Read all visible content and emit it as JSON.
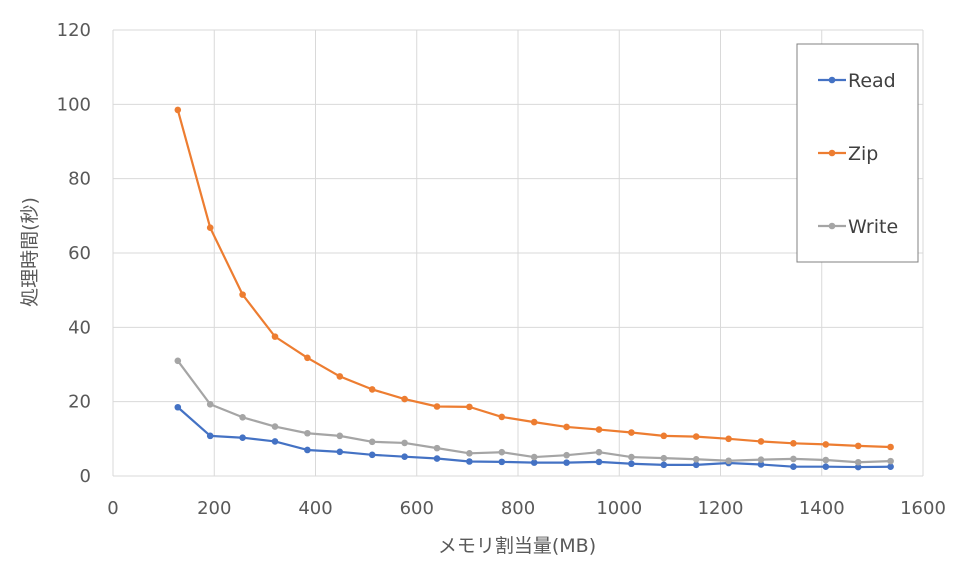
{
  "chart_data": {
    "type": "line",
    "title": "",
    "xlabel": "メモリ割当量(MB)",
    "ylabel": "処理時間(秒)",
    "xlim": [
      0,
      1600
    ],
    "ylim": [
      0,
      120
    ],
    "xticks": [
      0,
      200,
      400,
      600,
      800,
      1000,
      1200,
      1400,
      1600
    ],
    "yticks": [
      0,
      20,
      40,
      60,
      80,
      100,
      120
    ],
    "grid": true,
    "legend_position": "right",
    "x": [
      128,
      192,
      256,
      320,
      384,
      448,
      512,
      576,
      640,
      704,
      768,
      832,
      896,
      960,
      1024,
      1088,
      1152,
      1216,
      1280,
      1344,
      1408,
      1472,
      1536
    ],
    "series": [
      {
        "name": "Read",
        "color": "#4472c4",
        "values": [
          18.5,
          10.8,
          10.3,
          9.3,
          7.0,
          6.5,
          5.7,
          5.2,
          4.7,
          3.9,
          3.8,
          3.6,
          3.6,
          3.8,
          3.3,
          3.0,
          3.0,
          3.5,
          3.1,
          2.5,
          2.5,
          2.4,
          2.5
        ]
      },
      {
        "name": "Zip",
        "color": "#ed7d31",
        "values": [
          98.5,
          66.8,
          48.8,
          37.5,
          31.8,
          26.8,
          23.3,
          20.7,
          18.7,
          18.6,
          15.9,
          14.5,
          13.2,
          12.5,
          11.7,
          10.8,
          10.6,
          10.0,
          9.3,
          8.8,
          8.5,
          8.1,
          7.8
        ]
      },
      {
        "name": "Write",
        "color": "#a5a5a5",
        "values": [
          31.0,
          19.3,
          15.8,
          13.3,
          11.5,
          10.8,
          9.2,
          8.9,
          7.5,
          6.1,
          6.4,
          5.1,
          5.6,
          6.4,
          5.1,
          4.8,
          4.5,
          4.1,
          4.4,
          4.6,
          4.3,
          3.7,
          4.0
        ]
      }
    ]
  }
}
